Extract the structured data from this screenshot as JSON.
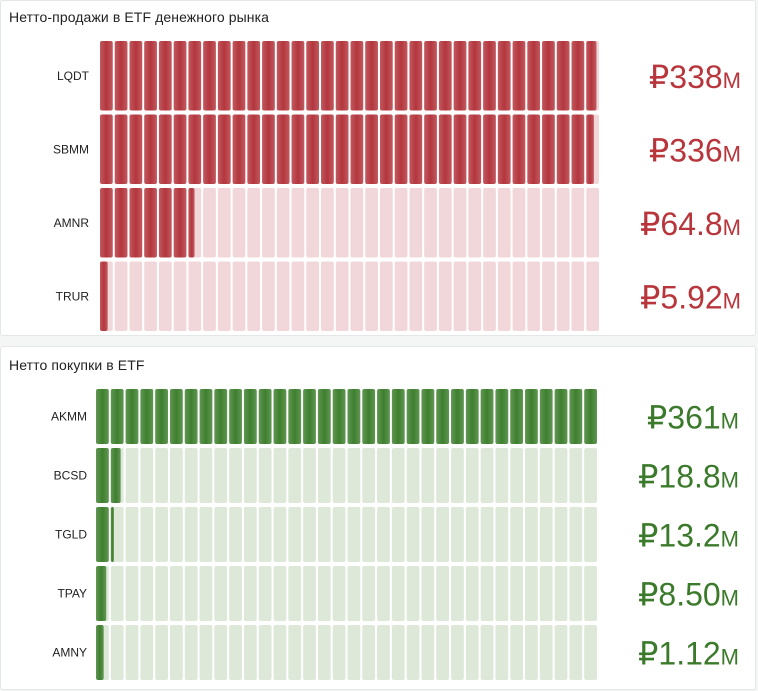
{
  "chart_data": [
    {
      "type": "bar",
      "title": "Нетто-продажи в ETF денежного рынка",
      "unit_prefix": "₽",
      "unit_suffix": "M",
      "max": 340,
      "cells": 34,
      "colors": {
        "fill": "#b3363d",
        "empty": "#f2d7da",
        "text": "#b8353c"
      },
      "rows": [
        {
          "label": "LQDT",
          "value": 338,
          "display": "₽338M"
        },
        {
          "label": "SBMM",
          "value": 336,
          "display": "₽336M"
        },
        {
          "label": "AMNR",
          "value": 64.8,
          "display": "₽64.8M"
        },
        {
          "label": "TRUR",
          "value": 5.92,
          "display": "₽5.92M"
        }
      ]
    },
    {
      "type": "bar",
      "title": "Нетто покупки в ETF",
      "unit_prefix": "₽",
      "unit_suffix": "M",
      "max": 361,
      "cells": 34,
      "colors": {
        "fill": "#3e7f2e",
        "empty": "#dde8d9",
        "text": "#3a7a2a"
      },
      "rows": [
        {
          "label": "AKMM",
          "value": 361,
          "display": "₽361M"
        },
        {
          "label": "BCSD",
          "value": 18.8,
          "display": "₽18.8M"
        },
        {
          "label": "TGLD",
          "value": 13.2,
          "display": "₽13.2M"
        },
        {
          "label": "TPAY",
          "value": 8.5,
          "display": "₽8.50M"
        },
        {
          "label": "AMNY",
          "value": 1.12,
          "display": "₽1.12M"
        }
      ]
    }
  ]
}
